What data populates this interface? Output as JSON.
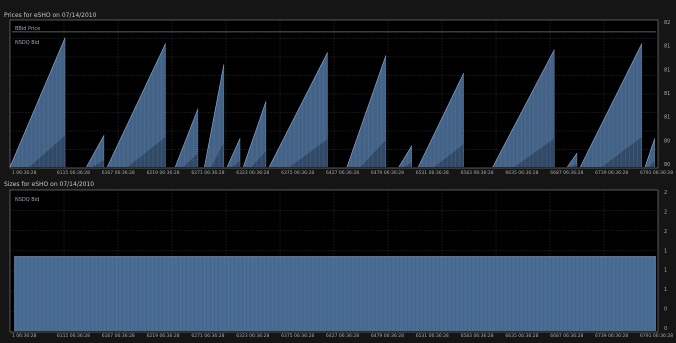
{
  "chart_data": [
    {
      "type": "area",
      "title": "Prices for eSHO on 07/14/2010",
      "legend": [
        "BBid Price",
        "NSDQ Bid"
      ],
      "legend_position": "top-left",
      "grid": true,
      "y_ticks": [
        "82",
        "81",
        "81",
        "81",
        "81",
        "80",
        "80"
      ],
      "x_ticks": [
        "1 06:36:28",
        "6115 06:36:28",
        "6167 06:36:28",
        "6219 06:36:28",
        "6271 06:36:28",
        "6323 06:36:28",
        "6375 06:36:28",
        "6427 06:36:28",
        "6479 06:36:28",
        "6531 06:36:28",
        "6583 06:36:28",
        "6635 06:36:28",
        "6687 06:36:28",
        "6739 06:36:28",
        "6791 06:36:28"
      ],
      "reference_line": 0.92,
      "sawtooth_cycles": [
        {
          "start": 0.0,
          "peak": 0.085,
          "level": 0.88
        },
        {
          "start": 0.118,
          "peak": 0.145,
          "level": 0.22
        },
        {
          "start": 0.15,
          "peak": 0.24,
          "level": 0.84
        },
        {
          "start": 0.255,
          "peak": 0.29,
          "level": 0.4
        },
        {
          "start": 0.3,
          "peak": 0.33,
          "level": 0.7
        },
        {
          "start": 0.335,
          "peak": 0.355,
          "level": 0.2
        },
        {
          "start": 0.36,
          "peak": 0.395,
          "level": 0.45
        },
        {
          "start": 0.4,
          "peak": 0.49,
          "level": 0.78
        },
        {
          "start": 0.52,
          "peak": 0.58,
          "level": 0.76
        },
        {
          "start": 0.6,
          "peak": 0.62,
          "level": 0.15
        },
        {
          "start": 0.63,
          "peak": 0.7,
          "level": 0.64
        },
        {
          "start": 0.745,
          "peak": 0.84,
          "level": 0.8
        },
        {
          "start": 0.86,
          "peak": 0.875,
          "level": 0.1
        },
        {
          "start": 0.88,
          "peak": 0.975,
          "level": 0.84
        },
        {
          "start": 0.98,
          "peak": 0.995,
          "level": 0.2
        }
      ]
    },
    {
      "type": "bar",
      "title": "Sizes for eSHO on 07/14/2010",
      "legend": [
        "NSDQ Bid"
      ],
      "legend_position": "top-left",
      "grid": true,
      "y_ticks": [
        "2",
        "2",
        "2",
        "1",
        "1",
        "1",
        "0",
        "0"
      ],
      "x_ticks": [
        "1 06:36:28",
        "6115 06:36:28",
        "6167 06:36:28",
        "6219 06:36:28",
        "6271 06:36:28",
        "6323 06:36:28",
        "6375 06:36:28",
        "6427 06:36:28",
        "6479 06:36:28",
        "6531 06:36:28",
        "6583 06:36:28",
        "6635 06:36:28",
        "6687 06:36:28",
        "6739 06:36:28",
        "6791 06:36:28"
      ],
      "bar_level": 0.53,
      "bar_count": 160
    }
  ],
  "colors": {
    "fill": "#4a6d95",
    "fill_dark": "#2e4561",
    "line": "#8fb3dc",
    "grid": "#3a3a3a",
    "frame": "#8a8a8a",
    "bg": "#000000"
  }
}
